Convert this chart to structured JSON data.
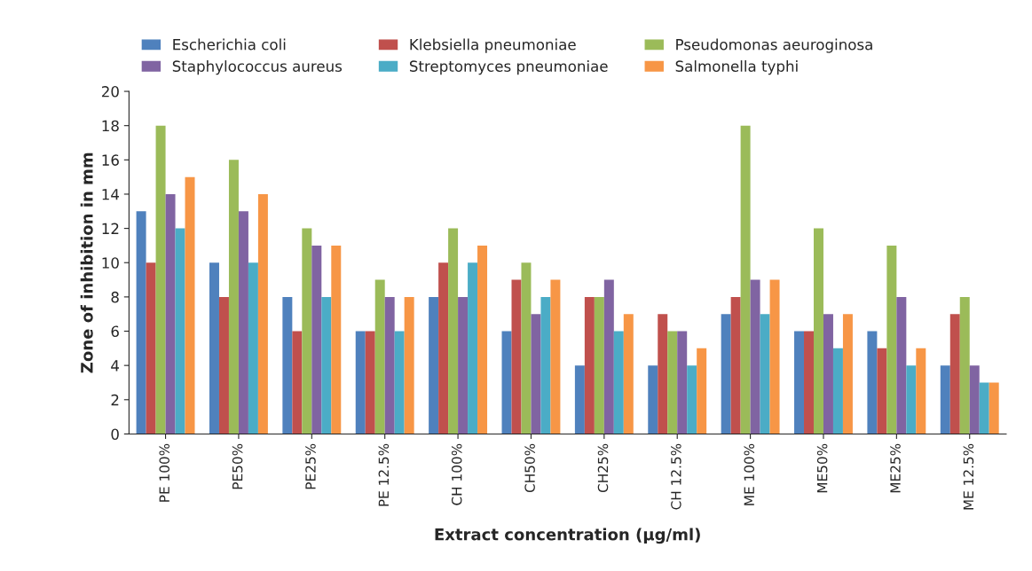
{
  "chart_data": {
    "type": "bar",
    "xlabel": "Extract concentration (µg/ml)",
    "ylabel": "Zone of inhibition in mm",
    "categories": [
      "PE 100%",
      "PE50%",
      "PE25%",
      "PE 12.5%",
      "CH 100%",
      "CH50%",
      "CH25%",
      "CH 12.5%",
      "ME 100%",
      "ME50%",
      "ME25%",
      "ME 12.5%"
    ],
    "series": [
      {
        "name": "Escherichia coli",
        "color": "#4f81bd",
        "values": [
          13,
          10,
          8,
          6,
          8,
          6,
          4,
          4,
          7,
          6,
          6,
          4
        ]
      },
      {
        "name": "Klebsiella pneumoniae",
        "color": "#c0504d",
        "values": [
          10,
          8,
          6,
          6,
          10,
          9,
          8,
          7,
          8,
          6,
          5,
          7
        ]
      },
      {
        "name": "Pseudomonas aeuroginosa",
        "color": "#9bbb59",
        "values": [
          18,
          16,
          12,
          9,
          12,
          10,
          8,
          6,
          18,
          12,
          11,
          8
        ]
      },
      {
        "name": "Staphylococcus aureus",
        "color": "#8064a2",
        "values": [
          14,
          13,
          11,
          8,
          8,
          7,
          9,
          6,
          9,
          7,
          8,
          4
        ]
      },
      {
        "name": "Streptomyces pneumoniae",
        "color": "#4bacc6",
        "values": [
          12,
          10,
          8,
          6,
          10,
          8,
          6,
          4,
          7,
          5,
          4,
          3
        ]
      },
      {
        "name": "Salmonella typhi",
        "color": "#f79646",
        "values": [
          15,
          14,
          11,
          8,
          11,
          9,
          7,
          5,
          9,
          7,
          5,
          3
        ]
      }
    ],
    "ylim": [
      0,
      20
    ],
    "yticks": [
      0,
      2,
      4,
      6,
      8,
      10,
      12,
      14,
      16,
      18,
      20
    ],
    "grid": false,
    "legend": "top"
  }
}
